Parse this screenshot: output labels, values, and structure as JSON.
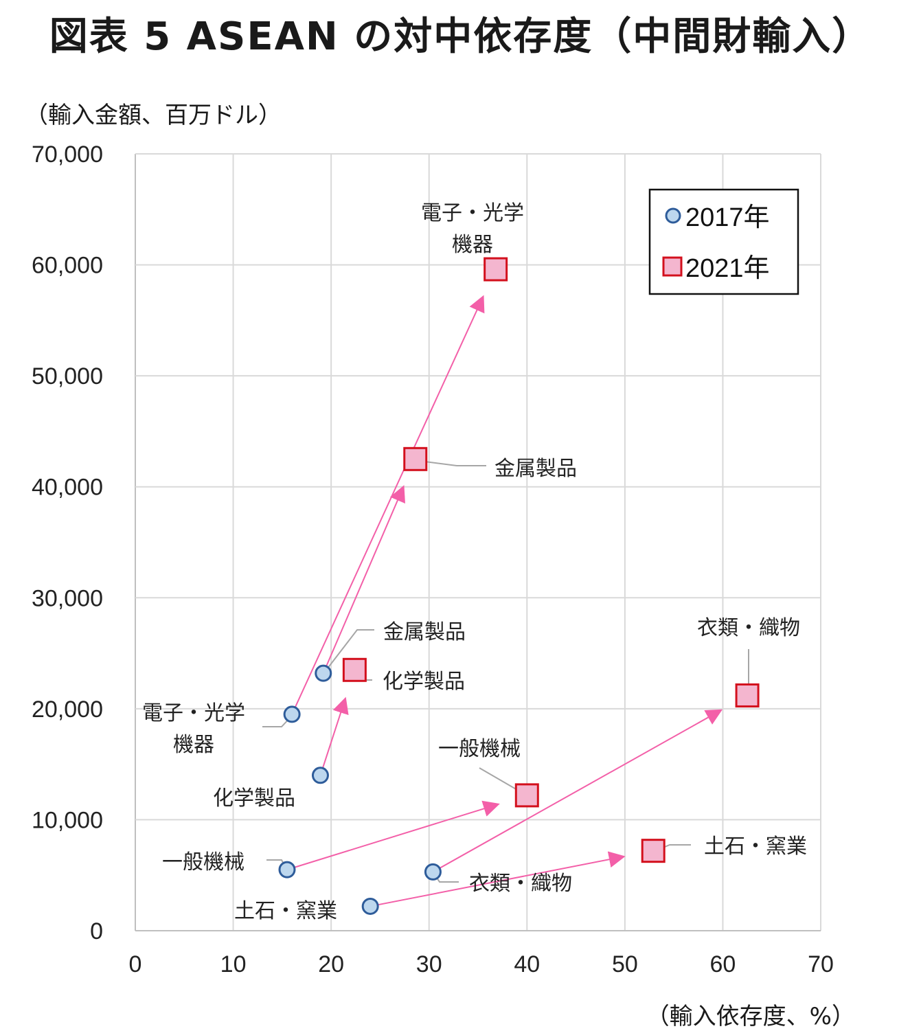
{
  "title": "図表 5 ASEAN の対中依存度（中間財輸入）",
  "chart_data": {
    "type": "scatter",
    "title": "図表 5 ASEAN の対中依存度（中間財輸入）",
    "xlabel": "（輸入依存度、%）",
    "ylabel": "（輸入金額、百万ドル）",
    "xlim": [
      0,
      70
    ],
    "ylim": [
      0,
      70000
    ],
    "x_ticks": [
      "0",
      "10",
      "20",
      "30",
      "40",
      "50",
      "60",
      "70"
    ],
    "y_ticks": [
      "0",
      "10,000",
      "20,000",
      "30,000",
      "40,000",
      "50,000",
      "60,000",
      "70,000"
    ],
    "grid": true,
    "legend_position": "top-right",
    "series": [
      {
        "name": "2017年",
        "marker": "circle",
        "color": "#bdd7ee",
        "edge": "#2e5c9a",
        "points": [
          {
            "label": "電子・光学\n機器",
            "x": 16.0,
            "y": 19500
          },
          {
            "label": "金属製品",
            "x": 19.2,
            "y": 23200
          },
          {
            "label": "化学製品",
            "x": 18.9,
            "y": 14000
          },
          {
            "label": "一般機械",
            "x": 15.5,
            "y": 5500
          },
          {
            "label": "衣類・織物",
            "x": 30.4,
            "y": 5300
          },
          {
            "label": "土石・窯業",
            "x": 24.0,
            "y": 2200
          }
        ]
      },
      {
        "name": "2021年",
        "marker": "square",
        "color": "#f4b6cf",
        "edge": "#d3101d",
        "points": [
          {
            "label": "電子・光学\n機器",
            "x": 36.8,
            "y": 59600
          },
          {
            "label": "金属製品",
            "x": 28.6,
            "y": 42500
          },
          {
            "label": "化学製品",
            "x": 22.4,
            "y": 23500
          },
          {
            "label": "一般機械",
            "x": 40.0,
            "y": 12200
          },
          {
            "label": "衣類・織物",
            "x": 62.5,
            "y": 21200
          },
          {
            "label": "土石・窯業",
            "x": 52.9,
            "y": 7200
          }
        ]
      }
    ],
    "arrow_color": "#f35fa8"
  }
}
